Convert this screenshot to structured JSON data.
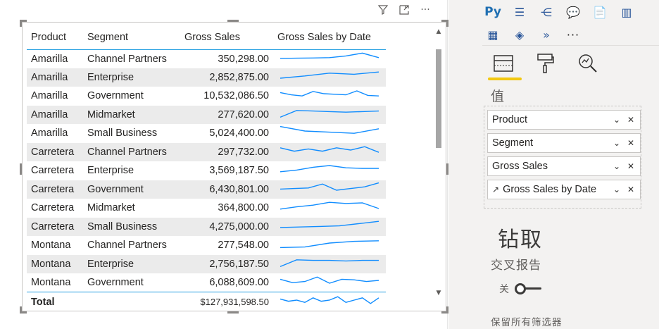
{
  "visual_header": {
    "filter_icon": "filter-icon",
    "focus_icon": "focus-mode-icon",
    "more_label": "···"
  },
  "table": {
    "columns": [
      "Product",
      "Segment",
      "Gross Sales",
      "Gross Sales by Date"
    ],
    "rows": [
      {
        "product": "Amarilla",
        "segment": "Channel Partners",
        "gross_sales": "350,298.00",
        "spark": [
          0.62,
          0.6,
          0.58,
          0.55,
          0.4,
          0.15,
          0.55
        ]
      },
      {
        "product": "Amarilla",
        "segment": "Enterprise",
        "gross_sales": "2,852,875.00",
        "spark": [
          0.75,
          0.55,
          0.3,
          0.4,
          0.2
        ]
      },
      {
        "product": "Amarilla",
        "segment": "Government",
        "gross_sales": "10,532,086.50",
        "spark": [
          0.4,
          0.6,
          0.7,
          0.3,
          0.5,
          0.55,
          0.6,
          0.25,
          0.65,
          0.7
        ]
      },
      {
        "product": "Amarilla",
        "segment": "Midmarket",
        "gross_sales": "277,620.00",
        "spark": [
          0.9,
          0.3,
          0.35,
          0.4,
          0.45,
          0.4,
          0.35
        ]
      },
      {
        "product": "Amarilla",
        "segment": "Small Business",
        "gross_sales": "5,024,400.00",
        "spark": [
          0.1,
          0.5,
          0.6,
          0.7,
          0.3
        ]
      },
      {
        "product": "Carretera",
        "segment": "Channel Partners",
        "gross_sales": "297,732.00",
        "spark": [
          0.3,
          0.6,
          0.4,
          0.6,
          0.3,
          0.5,
          0.2,
          0.7
        ]
      },
      {
        "product": "Carretera",
        "segment": "Enterprise",
        "gross_sales": "3,569,187.50",
        "spark": [
          0.8,
          0.65,
          0.4,
          0.25,
          0.45,
          0.5,
          0.5
        ]
      },
      {
        "product": "Carretera",
        "segment": "Government",
        "gross_sales": "6,430,801.00",
        "spark": [
          0.65,
          0.6,
          0.55,
          0.2,
          0.75,
          0.6,
          0.45,
          0.1
        ]
      },
      {
        "product": "Carretera",
        "segment": "Midmarket",
        "gross_sales": "364,800.00",
        "spark": [
          0.8,
          0.6,
          0.45,
          0.2,
          0.3,
          0.25,
          0.75
        ]
      },
      {
        "product": "Carretera",
        "segment": "Small Business",
        "gross_sales": "4,275,000.00",
        "spark": [
          0.75,
          0.7,
          0.65,
          0.6,
          0.4,
          0.2
        ]
      },
      {
        "product": "Montana",
        "segment": "Channel Partners",
        "gross_sales": "277,548.00",
        "spark": [
          0.9,
          0.85,
          0.5,
          0.35,
          0.3
        ]
      },
      {
        "product": "Montana",
        "segment": "Enterprise",
        "gross_sales": "2,756,187.50",
        "spark": [
          0.9,
          0.3,
          0.35,
          0.35,
          0.4,
          0.35,
          0.35
        ]
      },
      {
        "product": "Montana",
        "segment": "Government",
        "gross_sales": "6,088,609.00",
        "spark": [
          0.4,
          0.7,
          0.6,
          0.2,
          0.75,
          0.4,
          0.45,
          0.6,
          0.5
        ]
      }
    ],
    "total": {
      "label": "Total",
      "gross_sales": "$127,931,598.50",
      "spark": [
        0.4,
        0.6,
        0.5,
        0.7,
        0.3,
        0.6,
        0.5,
        0.2,
        0.7,
        0.5,
        0.3,
        0.8,
        0.3
      ]
    }
  },
  "pane": {
    "viz_row1": [
      {
        "name": "python-visual-icon",
        "label": "Py"
      },
      {
        "name": "key-influencers-icon",
        "label": "☰"
      },
      {
        "name": "decomposition-tree-icon",
        "label": "⋲"
      },
      {
        "name": "qa-icon",
        "label": "💬"
      },
      {
        "name": "smart-narrative-icon",
        "label": "📄"
      },
      {
        "name": "paginated-report-icon",
        "label": "▥"
      }
    ],
    "viz_row2": [
      {
        "name": "custom-visual-icon",
        "label": "▦"
      },
      {
        "name": "diamond-visual-icon",
        "label": "◈"
      },
      {
        "name": "power-automate-icon",
        "label": "»"
      },
      {
        "name": "more-visuals-icon",
        "label": "···"
      }
    ],
    "values_heading": "值",
    "fields": [
      {
        "label": "Product",
        "has_icon": false
      },
      {
        "label": "Segment",
        "has_icon": false
      },
      {
        "label": "Gross Sales",
        "has_icon": false
      },
      {
        "label": "Gross Sales by Date",
        "has_icon": true
      }
    ],
    "drill_title": "钻取",
    "cross_report": "交叉报告",
    "toggle_label": "关",
    "toggle_on": false,
    "keep_filters": "保留所有筛选器"
  },
  "colors": {
    "accent": "#1f9de0",
    "spark": "#118dff",
    "tab_underline": "#f2c811"
  }
}
